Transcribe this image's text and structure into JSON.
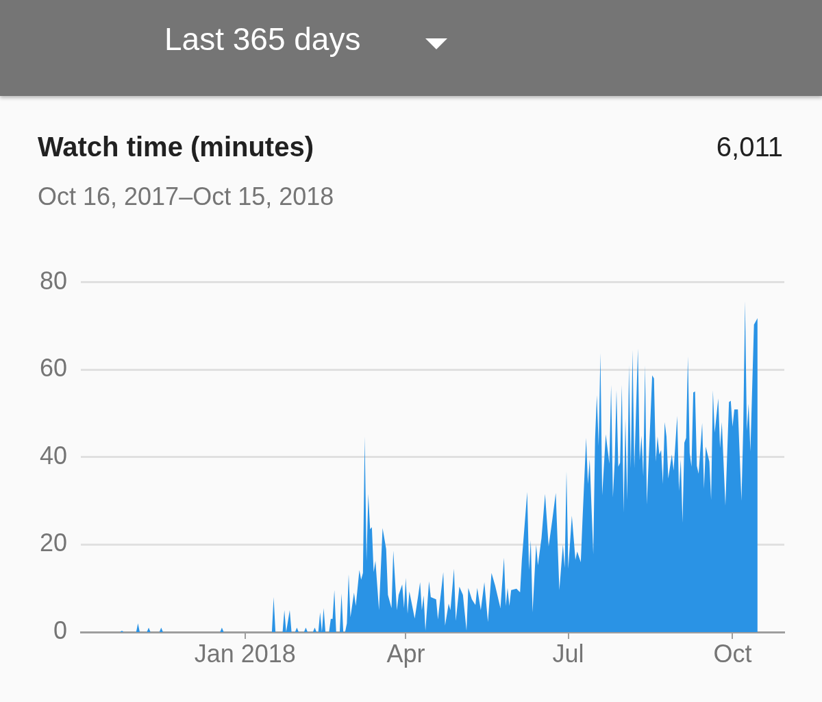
{
  "chart_data": {
    "type": "area",
    "title": "Watch time (minutes)",
    "subtitle": "Oct 16, 2017–Oct 15, 2018",
    "annotations": [
      "Last 365 days",
      "6,011"
    ],
    "x": [
      "2017-10-16",
      "2017-10-23",
      "2017-10-24",
      "2017-10-25",
      "2017-11-01",
      "2017-11-02",
      "2017-11-03",
      "2017-11-07",
      "2017-11-08",
      "2017-11-09",
      "2017-11-14",
      "2017-11-15",
      "2017-11-16",
      "2017-12-18",
      "2017-12-19",
      "2017-12-20",
      "2018-01-16",
      "2018-01-17",
      "2018-01-18",
      "2018-01-22",
      "2018-01-23",
      "2018-01-24",
      "2018-01-26",
      "2018-01-27",
      "2018-01-29",
      "2018-01-30",
      "2018-01-31",
      "2018-02-03",
      "2018-02-04",
      "2018-02-05",
      "2018-02-08",
      "2018-02-09",
      "2018-02-10",
      "2018-02-11",
      "2018-02-12",
      "2018-02-13",
      "2018-02-14",
      "2018-02-15",
      "2018-02-17",
      "2018-02-18",
      "2018-02-19",
      "2018-02-20",
      "2018-02-21",
      "2018-02-23",
      "2018-02-24",
      "2018-02-25",
      "2018-02-26",
      "2018-02-27",
      "2018-02-28",
      "2018-03-01",
      "2018-03-03",
      "2018-03-04",
      "2018-03-06",
      "2018-03-07",
      "2018-03-08",
      "2018-03-09",
      "2018-03-10",
      "2018-03-11",
      "2018-03-12",
      "2018-03-13",
      "2018-03-14",
      "2018-03-15",
      "2018-03-17",
      "2018-03-19",
      "2018-03-21",
      "2018-03-22",
      "2018-03-24",
      "2018-03-25",
      "2018-03-27",
      "2018-03-28",
      "2018-03-30",
      "2018-03-31",
      "2018-04-01",
      "2018-04-02",
      "2018-04-03",
      "2018-04-06",
      "2018-04-08",
      "2018-04-09",
      "2018-04-10",
      "2018-04-11",
      "2018-04-12",
      "2018-04-14",
      "2018-04-15",
      "2018-04-18",
      "2018-04-19",
      "2018-04-22",
      "2018-04-23",
      "2018-04-25",
      "2018-04-26",
      "2018-04-28",
      "2018-04-29",
      "2018-05-01",
      "2018-05-03",
      "2018-05-05",
      "2018-05-06",
      "2018-05-08",
      "2018-05-10",
      "2018-05-11",
      "2018-05-13",
      "2018-05-15",
      "2018-05-17",
      "2018-05-19",
      "2018-05-21",
      "2018-05-24",
      "2018-05-26",
      "2018-05-27",
      "2018-05-28",
      "2018-05-29",
      "2018-05-30",
      "2018-06-02",
      "2018-06-04",
      "2018-06-05",
      "2018-06-08",
      "2018-06-09",
      "2018-06-10",
      "2018-06-11",
      "2018-06-13",
      "2018-06-14",
      "2018-06-16",
      "2018-06-18",
      "2018-06-20",
      "2018-06-22",
      "2018-06-24",
      "2018-06-26",
      "2018-06-28",
      "2018-06-29",
      "2018-06-30",
      "2018-07-01",
      "2018-07-03",
      "2018-07-05",
      "2018-07-06",
      "2018-07-08",
      "2018-07-09",
      "2018-07-11",
      "2018-07-12",
      "2018-07-13",
      "2018-07-15",
      "2018-07-16",
      "2018-07-17",
      "2018-07-18",
      "2018-07-19",
      "2018-07-20",
      "2018-07-22",
      "2018-07-24",
      "2018-07-25",
      "2018-07-26",
      "2018-07-27",
      "2018-07-28",
      "2018-07-29",
      "2018-07-30",
      "2018-07-31",
      "2018-08-01",
      "2018-08-02",
      "2018-08-03",
      "2018-08-04",
      "2018-08-05",
      "2018-08-06",
      "2018-08-07",
      "2018-08-09",
      "2018-08-10",
      "2018-08-11",
      "2018-08-12",
      "2018-08-13",
      "2018-08-14",
      "2018-08-17",
      "2018-08-18",
      "2018-08-19",
      "2018-08-20",
      "2018-08-21",
      "2018-08-22",
      "2018-08-23",
      "2018-08-24",
      "2018-08-25",
      "2018-08-26",
      "2018-08-28",
      "2018-08-29",
      "2018-08-31",
      "2018-09-01",
      "2018-09-02",
      "2018-09-03",
      "2018-09-04",
      "2018-09-05",
      "2018-09-06",
      "2018-09-07",
      "2018-09-08",
      "2018-09-09",
      "2018-09-10",
      "2018-09-11",
      "2018-09-12",
      "2018-09-14",
      "2018-09-15",
      "2018-09-16",
      "2018-09-18",
      "2018-09-19",
      "2018-09-20",
      "2018-09-21",
      "2018-09-23",
      "2018-09-24",
      "2018-09-25",
      "2018-09-27",
      "2018-09-29",
      "2018-09-30",
      "2018-10-01",
      "2018-10-02",
      "2018-10-04",
      "2018-10-06",
      "2018-10-07",
      "2018-10-08",
      "2018-10-09",
      "2018-10-10",
      "2018-10-11",
      "2018-10-13",
      "2018-10-15"
    ],
    "values": [
      0,
      0,
      0.3,
      0,
      0,
      2,
      0,
      0,
      1,
      0,
      0,
      1,
      0,
      0,
      1,
      0,
      0,
      8,
      0,
      0,
      5,
      0,
      5,
      0,
      0,
      1,
      0,
      0,
      1,
      0,
      0,
      1,
      0,
      0,
      4.5,
      0,
      5.5,
      0,
      0,
      3,
      3,
      9.6,
      0,
      0,
      8.8,
      0,
      0,
      2,
      13.2,
      3.4,
      9,
      6,
      14.2,
      12,
      13.5,
      44.7,
      16.3,
      31.6,
      23.5,
      24,
      13.7,
      16.3,
      5,
      23.8,
      19,
      8.5,
      5.5,
      18.6,
      5,
      8.5,
      10.9,
      5.5,
      12.4,
      4.2,
      9.3,
      3.1,
      8.5,
      11.4,
      5,
      8.4,
      0.3,
      11.6,
      8,
      7.5,
      2.9,
      13.7,
      1.5,
      6.5,
      5,
      14.5,
      2.6,
      10.4,
      8.5,
      0.3,
      10.1,
      7.5,
      6.2,
      10.1,
      5,
      11.4,
      2.3,
      13.5,
      10.7,
      5.5,
      17,
      6,
      10.1,
      6,
      9.6,
      9.9,
      9.1,
      16.5,
      32,
      14.2,
      21,
      4.5,
      20,
      15.3,
      21.5,
      31.6,
      19.6,
      25.5,
      31.8,
      9.6,
      20,
      14.7,
      36.7,
      14.5,
      26.6,
      16.5,
      18.4,
      16,
      25.9,
      44.4,
      33.9,
      39.5,
      17.8,
      44.1,
      54.2,
      42.6,
      63.8,
      31.3,
      45.2,
      38.5,
      56.5,
      30.8,
      39,
      55.3,
      37.8,
      38.7,
      56.5,
      27.4,
      48.8,
      30.2,
      61,
      37.5,
      64.5,
      37.5,
      64.8,
      39.3,
      44.9,
      35.6,
      61,
      29.2,
      58.7,
      58,
      39,
      44.7,
      40.6,
      41.6,
      33.9,
      48,
      44.7,
      35.1,
      40.6,
      36.9,
      49.4,
      32.3,
      39.5,
      25,
      43.3,
      44.4,
      63,
      40.9,
      37.8,
      54.8,
      55,
      38,
      36.2,
      47.8,
      32.8,
      42.4,
      39,
      30.2,
      55.3,
      45.6,
      53.4,
      42.1,
      48,
      28.9,
      52.6,
      52.9,
      47,
      50.9,
      50.9,
      30,
      46.7,
      75.7,
      46,
      52.2,
      41.3,
      70.3,
      71.8
    ],
    "color": "#2a93e5",
    "xlim": [
      "2017-10-01",
      "2018-10-30"
    ],
    "xticks": [
      {
        "value": "2018-01-01",
        "label": "Jan 2018"
      },
      {
        "value": "2018-04-01",
        "label": "Apr"
      },
      {
        "value": "2018-07-01",
        "label": "Jul"
      },
      {
        "value": "2018-10-01",
        "label": "Oct"
      }
    ],
    "ylim": [
      0,
      80
    ],
    "yticks": [
      0,
      20,
      40,
      60,
      80
    ],
    "grid": "y",
    "legend": false,
    "marker": "none"
  }
}
